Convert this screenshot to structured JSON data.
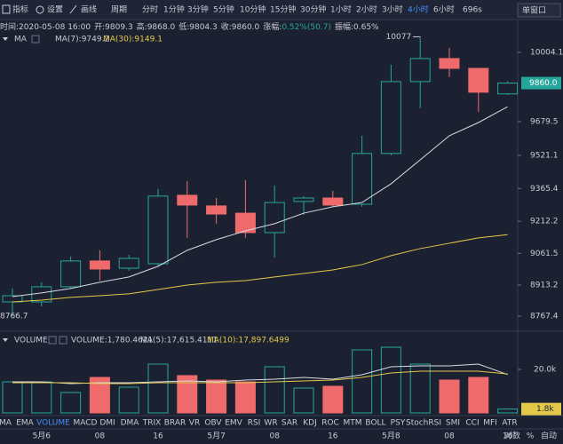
{
  "toolbar": {
    "tools": [
      "指标",
      "设置",
      "画线"
    ],
    "period_label": "周期",
    "periods": [
      "分时",
      "1分钟",
      "3分钟",
      "5分钟",
      "10分钟",
      "15分钟",
      "30分钟",
      "1小时",
      "2小时",
      "3小时",
      "4小时",
      "6小时"
    ],
    "active_period": "4小时",
    "more": "696s",
    "window": "单窗口"
  },
  "info": [
    "时间:2020-05-08 16:00",
    "开:9809.3",
    "高:9868.0",
    "低:9804.3",
    "收:9860.0",
    "涨幅:",
    "0.52%(50.7)",
    "振幅:0.65%"
  ],
  "indicator_tabs": [
    "MA",
    "EMA",
    "VOLUME",
    "MACD",
    "DMI",
    "DMA",
    "TRIX",
    "BRAR",
    "VR",
    "OBV",
    "EMV",
    "RSI",
    "WR",
    "SAR",
    "KDJ",
    "ROC",
    "MTM",
    "BOLL",
    "PSY",
    "StochRSI",
    "SMI",
    "CCI",
    "MFI",
    "ATR"
  ],
  "active_tab": "VOLUME",
  "axis_options": [
    "对数",
    "%",
    "自动"
  ],
  "chart_data": [
    {
      "type": "candlestick",
      "label": "MA",
      "categories": [
        null,
        "5月6",
        null,
        "08",
        null,
        "16",
        null,
        "5月7",
        null,
        "08",
        null,
        "16",
        null,
        "5月8",
        null,
        "08",
        null,
        "16"
      ],
      "open": [
        8834,
        8834,
        8905,
        9026,
        8992,
        9013,
        9334,
        9284,
        9250,
        9159,
        9305,
        9321,
        9292,
        9530,
        9867,
        9975,
        9929,
        9809.3
      ],
      "high": [
        8897,
        8926,
        9047,
        9076,
        9055,
        9363,
        9401,
        9321,
        9405,
        9380,
        9330,
        9355,
        9613,
        9946,
        10077,
        10025,
        9929,
        9868
      ],
      "low": [
        8766.7,
        8813,
        8897,
        8934,
        8980,
        9001,
        9134,
        9201,
        9134,
        9042,
        9242,
        9280,
        9280,
        9521,
        9742,
        9888,
        9725,
        9804.3
      ],
      "close": [
        8863,
        8905,
        9026,
        8988,
        9038,
        9330,
        9288,
        9246,
        9159,
        9300,
        9321,
        9288,
        9530,
        9867,
        9975,
        9929,
        9817,
        9860
      ],
      "up_color": "#26a69a",
      "down_color": "#ef6b6b",
      "series": [
        {
          "name": "MA(7):9749.2",
          "color": "#d9dae3",
          "values": [
            8859,
            8876,
            8897,
            8926,
            8951,
            9001,
            9076,
            9126,
            9167,
            9201,
            9250,
            9280,
            9300,
            9388,
            9500,
            9613,
            9675,
            9749.2
          ]
        },
        {
          "name": "MA(30):9149.1",
          "color": "#e3c94a",
          "values": [
            8834,
            8842,
            8855,
            8863,
            8872,
            8892,
            8913,
            8926,
            8934,
            8951,
            8967,
            8984,
            9009,
            9051,
            9084,
            9109,
            9134,
            9149.1
          ]
        }
      ],
      "ylim": [
        8709,
        10083
      ],
      "yticks": [
        10004.1,
        9679.5,
        9521.1,
        9365.4,
        9212.2,
        9061.5,
        8913.2,
        8767.4
      ],
      "last_price": {
        "value": 9860,
        "label": "9860.0"
      }
    },
    {
      "type": "volume",
      "label": "VOLUME",
      "bars_name": "VOLUME:1,780.4621",
      "values": [
        14280,
        14280,
        9380,
        16320,
        11830,
        22440,
        17140,
        15100,
        14280,
        21220,
        11420,
        12240,
        28970,
        30190,
        22440,
        15100,
        16320,
        1780.4621
      ],
      "series": [
        {
          "name": "MA(5):17,615.4111",
          "color": "#d9dae3",
          "values": [
            14280,
            14280,
            13464,
            13872,
            13872,
            14280,
            14688,
            14280,
            15096,
            15504,
            16320,
            15504,
            17544,
            21216,
            21624,
            21624,
            22440,
            17615.4111
          ]
        },
        {
          "name": "MA(10):17,897.6499",
          "color": "#e3c94a",
          "values": [
            13872,
            13872,
            13872,
            13464,
            13464,
            13872,
            13872,
            13872,
            13872,
            14280,
            14688,
            15096,
            16320,
            18360,
            19176,
            19176,
            19176,
            17897.6499
          ]
        }
      ],
      "ylim": [
        0,
        30612
      ],
      "yticks": [
        {
          "value": 20000,
          "label": "20.0k"
        }
      ],
      "last_label": {
        "value": 1780.4621,
        "label": "1.8k"
      }
    }
  ]
}
